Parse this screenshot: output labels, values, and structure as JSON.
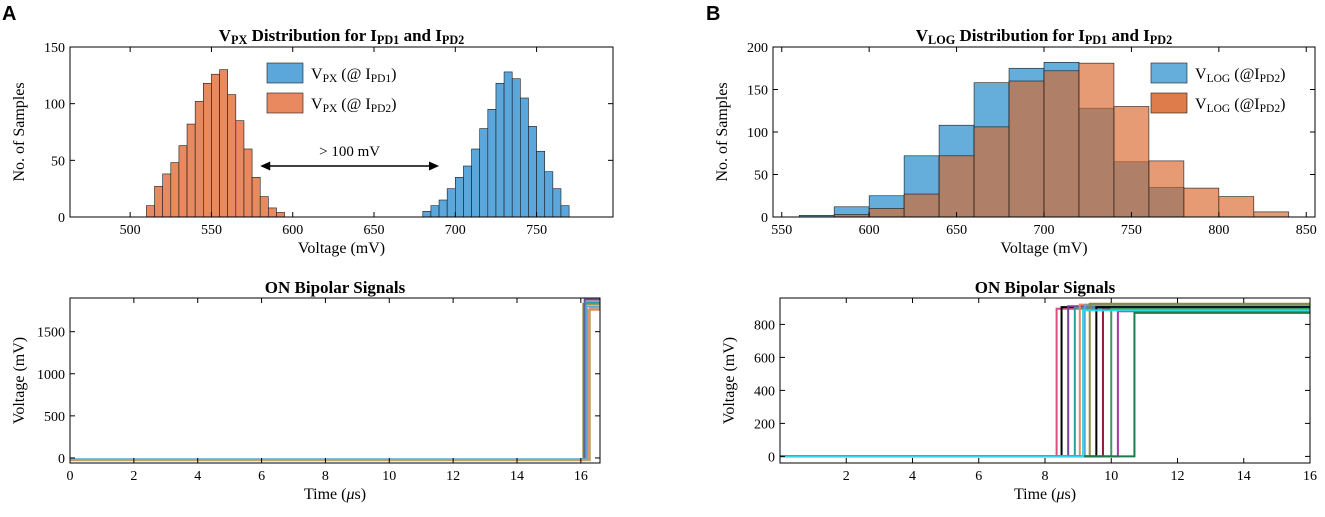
{
  "panels": {
    "a": "A",
    "b": "B"
  },
  "chart_data": [
    {
      "id": "vpx-hist",
      "type": "bar",
      "title": {
        "a": "V",
        "b": "PX",
        "c": " Distribution for I",
        "d": "PD1",
        "e": " and I",
        "f": "PD2"
      },
      "xlabel": "Voltage (mV)",
      "ylabel": "No. of Samples",
      "xlim": [
        463,
        797
      ],
      "ylim": [
        0,
        150
      ],
      "xticks": [
        500,
        550,
        600,
        650,
        700,
        750
      ],
      "yticks": [
        0,
        50,
        100,
        150
      ],
      "bin_width": 5,
      "legend_position": "top-right",
      "annotation": "> 100 mV",
      "arrow_x_range": [
        580,
        690
      ],
      "arrow_y": 45,
      "series": [
        {
          "name": "V_PX (@ I_PD1)",
          "legend": {
            "a": "V",
            "b": "PX",
            "c": " (@ I",
            "d": "PD1",
            "e": ")"
          },
          "color": "#2b8fd6",
          "fill": "#5ba7dc",
          "bin_starts": [
            480,
            675,
            680,
            685,
            690,
            695,
            700,
            705,
            710,
            715,
            720,
            725,
            730,
            735,
            740,
            745,
            750,
            755,
            760,
            765,
            770,
            775,
            780
          ],
          "values": [
            0,
            0,
            5,
            10,
            15,
            25,
            35,
            45,
            60,
            78,
            95,
            118,
            128,
            122,
            105,
            80,
            58,
            40,
            25,
            10,
            0,
            0,
            0
          ]
        },
        {
          "name": "V_PX (@ I_PD2)",
          "legend": {
            "a": "V",
            "b": "PX",
            "c": " (@ I",
            "d": "PD2",
            "e": ")"
          },
          "color": "#d8652b",
          "fill": "#e8895f",
          "bin_starts": [
            510,
            515,
            520,
            525,
            530,
            535,
            540,
            545,
            550,
            555,
            560,
            565,
            570,
            575,
            580,
            585,
            590
          ],
          "values": [
            10,
            27,
            38,
            48,
            63,
            82,
            102,
            118,
            126,
            130,
            108,
            85,
            60,
            35,
            18,
            8,
            4
          ]
        }
      ]
    },
    {
      "id": "on-bipolar-left",
      "type": "line",
      "title": {
        "a": "ON Bipolar Signals"
      },
      "xlabel": "Time (μs)",
      "ylabel": "Voltage (mV)",
      "xlim": [
        0,
        16.6
      ],
      "ylim": [
        -60,
        1900
      ],
      "xticks": [
        0,
        2,
        4,
        6,
        8,
        10,
        12,
        14,
        16
      ],
      "yticks": [
        0,
        500,
        1000,
        1500
      ],
      "series": [
        {
          "name": "trace-1",
          "color": "#8c8c3c",
          "low": -20,
          "t_rise": 16.08,
          "high": 1830
        },
        {
          "name": "trace-2",
          "color": "#7a3fa0",
          "low": -25,
          "t_rise": 16.12,
          "high": 1880
        },
        {
          "name": "trace-3",
          "color": "#2aa198",
          "low": -18,
          "t_rise": 16.15,
          "high": 1850
        },
        {
          "name": "trace-4",
          "color": "#e8895f",
          "low": -22,
          "t_rise": 16.22,
          "high": 1760
        },
        {
          "name": "trace-5",
          "color": "#5ba7dc",
          "low": -15,
          "t_rise": 16.18,
          "high": 1800
        },
        {
          "name": "trace-6",
          "color": "#bfa26a",
          "low": -28,
          "t_rise": 16.28,
          "high": 1780
        }
      ]
    },
    {
      "id": "vlog-hist",
      "type": "bar",
      "title": {
        "a": "V",
        "b": "LOG",
        "c": " Distribution for I",
        "d": "PD1",
        "e": " and I",
        "f": "PD2"
      },
      "xlabel": "Voltage (mV)",
      "ylabel": "No. of Samples",
      "xlim": [
        545,
        855
      ],
      "ylim": [
        0,
        200
      ],
      "xticks": [
        550,
        600,
        650,
        700,
        750,
        800,
        850
      ],
      "yticks": [
        0,
        50,
        100,
        150,
        200
      ],
      "bin_width": 20,
      "legend_position": "top-right",
      "series": [
        {
          "name": "V_LOG (@I_PD2) blue",
          "legend": {
            "a": "V",
            "b": "LOG",
            "c": " (@I",
            "d": "PD2",
            "e": ")"
          },
          "color": "#2b7fbf",
          "fill": "#4aa0d5",
          "opacity": 0.85,
          "bin_starts": [
            560,
            580,
            600,
            620,
            640,
            660,
            680,
            700,
            720,
            740,
            760,
            780
          ],
          "values": [
            2,
            12,
            25,
            72,
            108,
            158,
            175,
            182,
            128,
            65,
            35,
            0
          ]
        },
        {
          "name": "V_LOG (@I_PD2) orange",
          "legend": {
            "a": "V",
            "b": "LOG",
            "c": " (@I",
            "d": "PD2",
            "e": ")"
          },
          "color": "#c05a28",
          "fill": "#d8652b",
          "opacity": 0.65,
          "bin_starts": [
            560,
            580,
            600,
            620,
            640,
            660,
            680,
            700,
            720,
            740,
            760,
            780,
            800,
            820
          ],
          "values": [
            0,
            3,
            10,
            27,
            72,
            106,
            160,
            172,
            181,
            130,
            66,
            34,
            24,
            6
          ]
        }
      ]
    },
    {
      "id": "on-bipolar-right",
      "type": "line",
      "title": {
        "a": "ON Bipolar Signals"
      },
      "xlabel": "Time (μs)",
      "ylabel": "Voltage (mV)",
      "xlim": [
        0,
        16
      ],
      "ylim": [
        -40,
        960
      ],
      "xticks": [
        2,
        4,
        6,
        8,
        10,
        12,
        14,
        16
      ],
      "yticks": [
        0,
        200,
        400,
        600,
        800
      ],
      "series": [
        {
          "name": "trace-1",
          "color": "#d94f7a",
          "low": 0,
          "t_rise": 8.35,
          "high": 895
        },
        {
          "name": "trace-2",
          "color": "#000000",
          "low": 0,
          "t_rise": 8.5,
          "high": 905
        },
        {
          "name": "trace-3",
          "color": "#7a3fa0",
          "low": 0,
          "t_rise": 8.7,
          "high": 910
        },
        {
          "name": "trace-4",
          "color": "#2aa198",
          "low": 0,
          "t_rise": 8.9,
          "high": 900
        },
        {
          "name": "trace-5",
          "color": "#e8895f",
          "low": 0,
          "t_rise": 9.05,
          "high": 920
        },
        {
          "name": "trace-6",
          "color": "#5ba7dc",
          "low": 0,
          "t_rise": 9.2,
          "high": 915
        },
        {
          "name": "trace-7",
          "color": "#8c8c3c",
          "low": 0,
          "t_rise": 9.35,
          "high": 925
        },
        {
          "name": "trace-8",
          "color": "#000000",
          "low": 0,
          "t_rise": 9.55,
          "high": 905
        },
        {
          "name": "trace-9",
          "color": "#8a1f3d",
          "low": 0,
          "t_rise": 9.75,
          "high": 890
        },
        {
          "name": "trace-10",
          "color": "#3a9a5a",
          "low": 0,
          "t_rise": 10.0,
          "high": 895
        },
        {
          "name": "trace-11",
          "color": "#a03aa0",
          "low": 0,
          "t_rise": 10.2,
          "high": 880
        },
        {
          "name": "trace-12",
          "color": "#1f7a4a",
          "low": 0,
          "t_rise": 10.7,
          "high": 870
        },
        {
          "name": "trace-13",
          "color": "#33d6e6",
          "low": 0,
          "t_rise": 9.15,
          "high": 885
        }
      ]
    }
  ]
}
